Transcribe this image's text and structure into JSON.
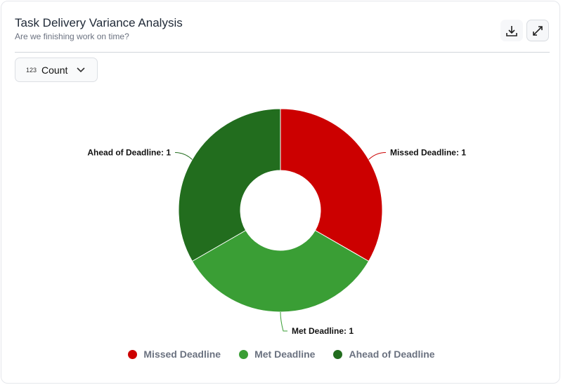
{
  "header": {
    "title": "Task Delivery Variance Analysis",
    "subtitle": "Are we finishing work on time?"
  },
  "toolbar": {
    "download_icon": "download-icon",
    "expand_icon": "expand-icon"
  },
  "measure_select": {
    "icon_text": "123",
    "value": "Count"
  },
  "chart_data": {
    "type": "pie",
    "variant": "donut",
    "categories": [
      "Missed Deadline",
      "Met Deadline",
      "Ahead of Deadline"
    ],
    "values": [
      1,
      1,
      1
    ],
    "colors": [
      "#cc0000",
      "#3a9e35",
      "#226d1e"
    ],
    "data_labels": [
      "Missed Deadline: 1",
      "Met Deadline: 1",
      "Ahead of Deadline: 1"
    ],
    "legend_position": "bottom"
  }
}
